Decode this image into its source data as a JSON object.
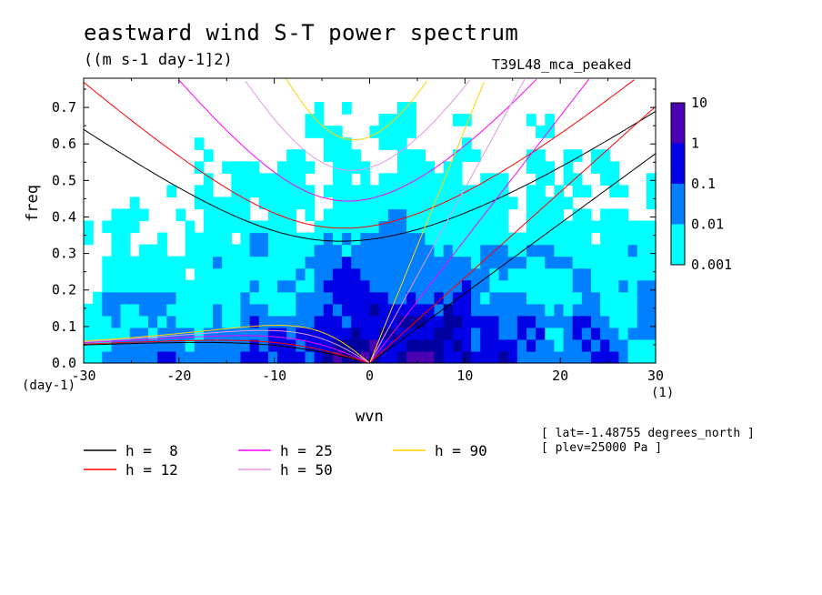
{
  "title": "eastward wind S-T power spectrum",
  "units": "((m s-1 day-1]2)",
  "dataset": "T39L48_mca_peaked",
  "info": [
    "[ lat=-1.48755 degrees_north ]",
    "[ plev=25000 Pa ]"
  ],
  "chart_data": {
    "type": "heatmap",
    "xlabel": "wvn",
    "ylabel": "freq",
    "x_units": "(1)",
    "y_units": "(day-1)",
    "xlim": [
      -30,
      30
    ],
    "ylim": [
      0,
      0.78
    ],
    "x_ticks": [
      -30,
      -20,
      -10,
      0,
      10,
      20,
      30
    ],
    "y_ticks": [
      0.0,
      0.1,
      0.2,
      0.3,
      0.4,
      0.5,
      0.6,
      0.7
    ],
    "x_tick_labels": [
      "-30",
      "-20",
      "-10",
      "0",
      "10",
      "20",
      "30"
    ],
    "y_tick_labels": [
      "0.0",
      "0.1",
      "0.2",
      "0.3",
      "0.4",
      "0.5",
      "0.6",
      "0.7"
    ],
    "colorbar": {
      "levels": [
        "0.001",
        "0.01",
        "0.1",
        "1",
        "10"
      ],
      "colors": [
        "#00ffff",
        "#0080ff",
        "#0000e6",
        "#0000a0",
        "#4b00b4"
      ]
    },
    "dispersion_curves": [
      {
        "name": "h =  8",
        "h": 8,
        "color": "#000000"
      },
      {
        "name": "h = 12",
        "h": 12,
        "color": "#ff0000"
      },
      {
        "name": "h = 25",
        "h": 25,
        "color": "#ff00ff"
      },
      {
        "name": "h = 50",
        "h": 50,
        "color": "#e696e6"
      },
      {
        "name": "h = 90",
        "h": 90,
        "color": "#ffd200"
      }
    ]
  },
  "legend_labels": [
    "h =  8",
    "h = 12",
    "h = 25",
    "h = 50",
    "h = 90"
  ]
}
